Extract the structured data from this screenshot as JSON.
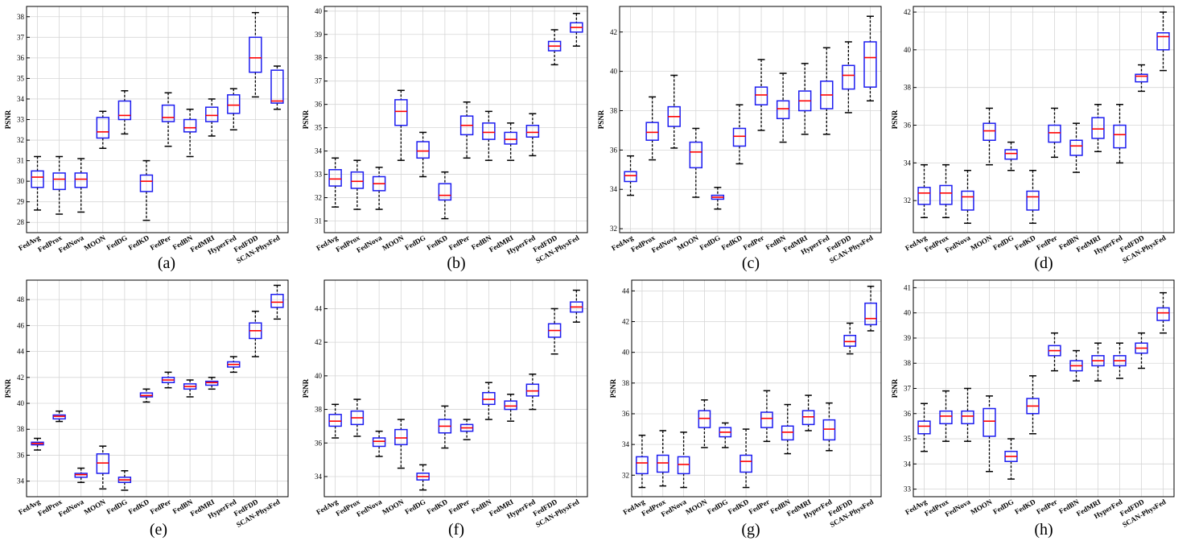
{
  "chart_data": [
    {
      "type": "box",
      "panel_label": "(a)",
      "ylabel": "PSNR",
      "ylim": [
        27.5,
        38.5
      ],
      "yticks": [
        28,
        29,
        30,
        31,
        32,
        33,
        34,
        35,
        36,
        37,
        38
      ],
      "grid": true,
      "categories": [
        "FedAvg",
        "FedProx",
        "FedNova",
        "MOON",
        "FedDG",
        "FedKD",
        "FedPer",
        "FedBN",
        "FedMRI",
        "HyperFed",
        "FedFDD",
        "SCAN-PhysFed"
      ],
      "boxes": [
        {
          "min": 28.6,
          "q1": 29.7,
          "median": 30.2,
          "q3": 30.5,
          "max": 31.2
        },
        {
          "min": 28.4,
          "q1": 29.6,
          "median": 30.1,
          "q3": 30.4,
          "max": 31.2
        },
        {
          "min": 28.5,
          "q1": 29.7,
          "median": 30.1,
          "q3": 30.4,
          "max": 31.1
        },
        {
          "min": 31.6,
          "q1": 32.1,
          "median": 32.4,
          "q3": 33.1,
          "max": 33.4
        },
        {
          "min": 32.3,
          "q1": 33.0,
          "median": 33.2,
          "q3": 33.9,
          "max": 34.4
        },
        {
          "min": 28.1,
          "q1": 29.5,
          "median": 30.0,
          "q3": 30.3,
          "max": 31.0
        },
        {
          "min": 31.7,
          "q1": 32.9,
          "median": 33.1,
          "q3": 33.7,
          "max": 34.3
        },
        {
          "min": 31.2,
          "q1": 32.4,
          "median": 32.6,
          "q3": 33.0,
          "max": 33.5
        },
        {
          "min": 32.2,
          "q1": 32.9,
          "median": 33.2,
          "q3": 33.6,
          "max": 34.0
        },
        {
          "min": 32.5,
          "q1": 33.3,
          "median": 33.7,
          "q3": 34.2,
          "max": 34.5
        },
        {
          "min": 34.1,
          "q1": 35.3,
          "median": 36.0,
          "q3": 37.0,
          "max": 38.2
        },
        {
          "min": 33.5,
          "q1": 33.8,
          "median": 33.9,
          "q3": 35.4,
          "max": 35.6
        }
      ]
    },
    {
      "type": "box",
      "panel_label": "(b)",
      "ylabel": "PSNR",
      "ylim": [
        30.5,
        40.2
      ],
      "yticks": [
        31,
        32,
        33,
        34,
        35,
        36,
        37,
        38,
        39,
        40
      ],
      "grid": true,
      "categories": [
        "FedAvg",
        "FedProx",
        "FedNova",
        "MOON",
        "FedDG",
        "FedKD",
        "FedPer",
        "FedBN",
        "FedMRI",
        "HyperFed",
        "FedFDD",
        "SCAN-PhysFed"
      ],
      "boxes": [
        {
          "min": 31.6,
          "q1": 32.5,
          "median": 32.8,
          "q3": 33.2,
          "max": 33.7
        },
        {
          "min": 31.5,
          "q1": 32.4,
          "median": 32.7,
          "q3": 33.1,
          "max": 33.6
        },
        {
          "min": 31.5,
          "q1": 32.3,
          "median": 32.6,
          "q3": 32.9,
          "max": 33.3
        },
        {
          "min": 33.6,
          "q1": 35.1,
          "median": 35.7,
          "q3": 36.2,
          "max": 36.6
        },
        {
          "min": 32.9,
          "q1": 33.7,
          "median": 34.0,
          "q3": 34.4,
          "max": 34.8
        },
        {
          "min": 31.1,
          "q1": 31.9,
          "median": 32.1,
          "q3": 32.6,
          "max": 33.1
        },
        {
          "min": 33.7,
          "q1": 34.7,
          "median": 35.1,
          "q3": 35.5,
          "max": 36.1
        },
        {
          "min": 33.6,
          "q1": 34.5,
          "median": 34.8,
          "q3": 35.2,
          "max": 35.7
        },
        {
          "min": 33.6,
          "q1": 34.3,
          "median": 34.5,
          "q3": 34.8,
          "max": 35.2
        },
        {
          "min": 33.8,
          "q1": 34.6,
          "median": 34.8,
          "q3": 35.1,
          "max": 35.6
        },
        {
          "min": 37.7,
          "q1": 38.3,
          "median": 38.5,
          "q3": 38.7,
          "max": 39.2
        },
        {
          "min": 38.5,
          "q1": 39.1,
          "median": 39.3,
          "q3": 39.5,
          "max": 39.9
        }
      ]
    },
    {
      "type": "box",
      "panel_label": "(c)",
      "ylabel": "PSNR",
      "ylim": [
        31.8,
        43.3
      ],
      "yticks": [
        32,
        34,
        36,
        38,
        40,
        42
      ],
      "grid": true,
      "categories": [
        "FedAvg",
        "FedProx",
        "FedNova",
        "MOON",
        "FedDG",
        "FedKD",
        "FedPer",
        "FedBN",
        "FedMRI",
        "HyperFed",
        "FedFDD",
        "SCAN-PhysFed"
      ],
      "boxes": [
        {
          "min": 33.7,
          "q1": 34.4,
          "median": 34.7,
          "q3": 34.9,
          "max": 35.7
        },
        {
          "min": 35.5,
          "q1": 36.5,
          "median": 36.9,
          "q3": 37.4,
          "max": 38.7
        },
        {
          "min": 36.1,
          "q1": 37.2,
          "median": 37.7,
          "q3": 38.2,
          "max": 39.8
        },
        {
          "min": 33.6,
          "q1": 35.1,
          "median": 35.9,
          "q3": 36.4,
          "max": 37.1
        },
        {
          "min": 33.0,
          "q1": 33.5,
          "median": 33.6,
          "q3": 33.7,
          "max": 34.1
        },
        {
          "min": 35.3,
          "q1": 36.2,
          "median": 36.7,
          "q3": 37.1,
          "max": 38.3
        },
        {
          "min": 37.0,
          "q1": 38.3,
          "median": 38.8,
          "q3": 39.2,
          "max": 40.6
        },
        {
          "min": 36.4,
          "q1": 37.6,
          "median": 38.1,
          "q3": 38.5,
          "max": 39.9
        },
        {
          "min": 36.8,
          "q1": 38.0,
          "median": 38.5,
          "q3": 39.0,
          "max": 40.4
        },
        {
          "min": 36.8,
          "q1": 38.1,
          "median": 38.8,
          "q3": 39.5,
          "max": 41.2
        },
        {
          "min": 37.9,
          "q1": 39.1,
          "median": 39.8,
          "q3": 40.3,
          "max": 41.5
        },
        {
          "min": 38.5,
          "q1": 39.2,
          "median": 40.7,
          "q3": 41.5,
          "max": 42.8
        }
      ]
    },
    {
      "type": "box",
      "panel_label": "(d)",
      "ylabel": "PSNR",
      "ylim": [
        30.3,
        42.3
      ],
      "yticks": [
        32,
        34,
        36,
        38,
        40,
        42
      ],
      "grid": true,
      "categories": [
        "FedAvg",
        "FedProx",
        "FedNova",
        "MOON",
        "FedDG",
        "FedKD",
        "FedPer",
        "FedBN",
        "FedMRI",
        "HyperFed",
        "FedFDD",
        "SCAN-PhysFed"
      ],
      "boxes": [
        {
          "min": 31.1,
          "q1": 31.8,
          "median": 32.4,
          "q3": 32.7,
          "max": 33.9
        },
        {
          "min": 31.1,
          "q1": 31.8,
          "median": 32.4,
          "q3": 32.8,
          "max": 33.9
        },
        {
          "min": 30.8,
          "q1": 31.5,
          "median": 32.2,
          "q3": 32.5,
          "max": 33.6
        },
        {
          "min": 33.9,
          "q1": 35.2,
          "median": 35.7,
          "q3": 36.1,
          "max": 36.9
        },
        {
          "min": 33.6,
          "q1": 34.2,
          "median": 34.5,
          "q3": 34.7,
          "max": 35.1
        },
        {
          "min": 30.8,
          "q1": 31.5,
          "median": 32.2,
          "q3": 32.5,
          "max": 33.6
        },
        {
          "min": 34.3,
          "q1": 35.1,
          "median": 35.6,
          "q3": 36.0,
          "max": 36.9
        },
        {
          "min": 33.5,
          "q1": 34.4,
          "median": 34.9,
          "q3": 35.2,
          "max": 36.1
        },
        {
          "min": 34.6,
          "q1": 35.3,
          "median": 35.8,
          "q3": 36.4,
          "max": 37.1
        },
        {
          "min": 34.0,
          "q1": 34.8,
          "median": 35.5,
          "q3": 36.0,
          "max": 37.1
        },
        {
          "min": 37.8,
          "q1": 38.3,
          "median": 38.6,
          "q3": 38.7,
          "max": 39.2
        },
        {
          "min": 38.9,
          "q1": 40.0,
          "median": 40.7,
          "q3": 40.9,
          "max": 42.0
        }
      ]
    },
    {
      "type": "box",
      "panel_label": "(e)",
      "ylabel": "PSNR",
      "ylim": [
        32.8,
        49.5
      ],
      "yticks": [
        34,
        36,
        38,
        40,
        42,
        44,
        46,
        48
      ],
      "grid": true,
      "categories": [
        "FedAvg",
        "FedProx",
        "FedNova",
        "MOON",
        "FedDG",
        "FedKD",
        "FedPer",
        "FedBN",
        "FedMRI",
        "HyperFed",
        "FedFDD",
        "SCAN-PhysFed"
      ],
      "boxes": [
        {
          "min": 36.4,
          "q1": 36.8,
          "median": 36.9,
          "q3": 37.0,
          "max": 37.3
        },
        {
          "min": 38.6,
          "q1": 38.8,
          "median": 39.0,
          "q3": 39.1,
          "max": 39.4
        },
        {
          "min": 33.9,
          "q1": 34.3,
          "median": 34.5,
          "q3": 34.6,
          "max": 35.0
        },
        {
          "min": 33.4,
          "q1": 34.6,
          "median": 35.4,
          "q3": 36.1,
          "max": 36.7
        },
        {
          "min": 33.3,
          "q1": 33.9,
          "median": 34.1,
          "q3": 34.3,
          "max": 34.8
        },
        {
          "min": 40.1,
          "q1": 40.5,
          "median": 40.6,
          "q3": 40.8,
          "max": 41.1
        },
        {
          "min": 41.2,
          "q1": 41.6,
          "median": 41.8,
          "q3": 42.0,
          "max": 42.4
        },
        {
          "min": 40.5,
          "q1": 41.1,
          "median": 41.3,
          "q3": 41.5,
          "max": 41.8
        },
        {
          "min": 41.1,
          "q1": 41.4,
          "median": 41.6,
          "q3": 41.7,
          "max": 42.0
        },
        {
          "min": 42.4,
          "q1": 42.8,
          "median": 43.0,
          "q3": 43.2,
          "max": 43.6
        },
        {
          "min": 43.6,
          "q1": 45.0,
          "median": 45.6,
          "q3": 46.2,
          "max": 47.1
        },
        {
          "min": 46.5,
          "q1": 47.4,
          "median": 47.8,
          "q3": 48.4,
          "max": 49.1
        }
      ]
    },
    {
      "type": "box",
      "panel_label": "(f)",
      "ylabel": "PSNR",
      "ylim": [
        32.8,
        45.7
      ],
      "yticks": [
        34,
        36,
        38,
        40,
        42,
        44
      ],
      "grid": true,
      "categories": [
        "FedAvg",
        "FedProx",
        "FedNova",
        "MOON",
        "FedDG",
        "FedKD",
        "FedPer",
        "FedBN",
        "FedMRI",
        "HyperFed",
        "FedFDD",
        "SCAN-PhysFed"
      ],
      "boxes": [
        {
          "min": 36.3,
          "q1": 37.0,
          "median": 37.3,
          "q3": 37.7,
          "max": 38.3
        },
        {
          "min": 36.4,
          "q1": 37.1,
          "median": 37.5,
          "q3": 37.9,
          "max": 38.6
        },
        {
          "min": 35.2,
          "q1": 35.8,
          "median": 36.1,
          "q3": 36.3,
          "max": 36.7
        },
        {
          "min": 34.5,
          "q1": 35.9,
          "median": 36.3,
          "q3": 36.8,
          "max": 37.4
        },
        {
          "min": 33.2,
          "q1": 33.8,
          "median": 34.0,
          "q3": 34.2,
          "max": 34.7
        },
        {
          "min": 35.7,
          "q1": 36.6,
          "median": 37.0,
          "q3": 37.4,
          "max": 38.2
        },
        {
          "min": 36.2,
          "q1": 36.7,
          "median": 36.9,
          "q3": 37.1,
          "max": 37.4
        },
        {
          "min": 37.4,
          "q1": 38.3,
          "median": 38.6,
          "q3": 39.0,
          "max": 39.6
        },
        {
          "min": 37.3,
          "q1": 38.0,
          "median": 38.2,
          "q3": 38.5,
          "max": 38.9
        },
        {
          "min": 38.0,
          "q1": 38.8,
          "median": 39.1,
          "q3": 39.5,
          "max": 40.1
        },
        {
          "min": 41.3,
          "q1": 42.3,
          "median": 42.7,
          "q3": 43.1,
          "max": 44.0
        },
        {
          "min": 43.2,
          "q1": 43.8,
          "median": 44.1,
          "q3": 44.4,
          "max": 45.1
        }
      ]
    },
    {
      "type": "box",
      "panel_label": "(g)",
      "ylabel": "PSNR",
      "ylim": [
        30.6,
        44.7
      ],
      "yticks": [
        32,
        34,
        36,
        38,
        40,
        42,
        44
      ],
      "grid": true,
      "categories": [
        "FedAvg",
        "FedProx",
        "FedNova",
        "MOON",
        "FedDG",
        "FedKD",
        "FedPer",
        "FedBN",
        "FedMRI",
        "HyperFed",
        "FedFDD",
        "SCAN-PhysFed"
      ],
      "boxes": [
        {
          "min": 31.2,
          "q1": 32.1,
          "median": 32.8,
          "q3": 33.2,
          "max": 34.6
        },
        {
          "min": 31.3,
          "q1": 32.2,
          "median": 32.8,
          "q3": 33.3,
          "max": 34.9
        },
        {
          "min": 31.2,
          "q1": 32.1,
          "median": 32.7,
          "q3": 33.2,
          "max": 34.8
        },
        {
          "min": 33.8,
          "q1": 35.1,
          "median": 35.7,
          "q3": 36.2,
          "max": 36.9
        },
        {
          "min": 33.8,
          "q1": 34.5,
          "median": 34.8,
          "q3": 35.1,
          "max": 35.4
        },
        {
          "min": 31.2,
          "q1": 32.2,
          "median": 32.9,
          "q3": 33.3,
          "max": 35.0
        },
        {
          "min": 34.2,
          "q1": 35.1,
          "median": 35.7,
          "q3": 36.1,
          "max": 37.5
        },
        {
          "min": 33.4,
          "q1": 34.3,
          "median": 34.8,
          "q3": 35.2,
          "max": 36.6
        },
        {
          "min": 34.9,
          "q1": 35.3,
          "median": 35.8,
          "q3": 36.2,
          "max": 37.2
        },
        {
          "min": 33.6,
          "q1": 34.3,
          "median": 35.0,
          "q3": 35.6,
          "max": 36.7
        },
        {
          "min": 39.9,
          "q1": 40.4,
          "median": 40.7,
          "q3": 41.1,
          "max": 41.9
        },
        {
          "min": 41.4,
          "q1": 41.8,
          "median": 42.2,
          "q3": 43.2,
          "max": 44.3
        }
      ]
    },
    {
      "type": "box",
      "panel_label": "(h)",
      "ylabel": "PSNR",
      "ylim": [
        32.7,
        41.3
      ],
      "yticks": [
        33,
        34,
        35,
        36,
        37,
        38,
        39,
        40,
        41
      ],
      "grid": true,
      "categories": [
        "FedAvg",
        "FedProx",
        "FedNova",
        "MOON",
        "FedDG",
        "FedKD",
        "FedPer",
        "FedBN",
        "FedMRI",
        "HyperFed",
        "FedFDD",
        "SCAN-PhysFed"
      ],
      "boxes": [
        {
          "min": 34.5,
          "q1": 35.2,
          "median": 35.5,
          "q3": 35.7,
          "max": 36.4
        },
        {
          "min": 34.9,
          "q1": 35.6,
          "median": 35.9,
          "q3": 36.1,
          "max": 36.9
        },
        {
          "min": 34.9,
          "q1": 35.6,
          "median": 35.9,
          "q3": 36.1,
          "max": 37.0
        },
        {
          "min": 33.7,
          "q1": 35.1,
          "median": 35.7,
          "q3": 36.2,
          "max": 36.7
        },
        {
          "min": 33.4,
          "q1": 34.1,
          "median": 34.3,
          "q3": 34.5,
          "max": 35.0
        },
        {
          "min": 35.2,
          "q1": 36.0,
          "median": 36.3,
          "q3": 36.6,
          "max": 37.5
        },
        {
          "min": 37.7,
          "q1": 38.3,
          "median": 38.5,
          "q3": 38.7,
          "max": 39.2
        },
        {
          "min": 37.3,
          "q1": 37.7,
          "median": 37.9,
          "q3": 38.1,
          "max": 38.5
        },
        {
          "min": 37.3,
          "q1": 37.9,
          "median": 38.1,
          "q3": 38.3,
          "max": 38.8
        },
        {
          "min": 37.4,
          "q1": 37.9,
          "median": 38.1,
          "q3": 38.3,
          "max": 38.8
        },
        {
          "min": 37.8,
          "q1": 38.4,
          "median": 38.6,
          "q3": 38.8,
          "max": 39.2
        },
        {
          "min": 39.2,
          "q1": 39.7,
          "median": 40.0,
          "q3": 40.2,
          "max": 40.8
        }
      ]
    }
  ],
  "colors": {
    "box": "#1c1cf0",
    "median": "#ff0000",
    "whisker": "#000000",
    "grid": "#d6d6d6",
    "axes": "#000000"
  }
}
